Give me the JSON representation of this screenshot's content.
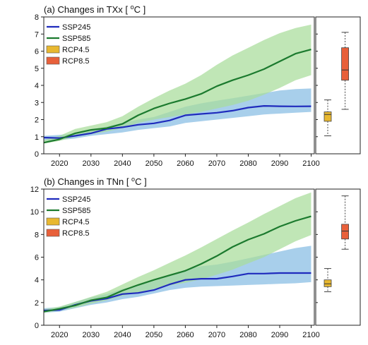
{
  "figure": {
    "panels": [
      {
        "title_prefix": "(a) Changes in TXx [ ",
        "title_unit_sup": "o",
        "title_unit": "C ]"
      },
      {
        "title_prefix": "(b) Changes in TNn [ ",
        "title_unit_sup": "o",
        "title_unit": "C ]"
      }
    ]
  },
  "chart_data": [
    {
      "type": "line",
      "title": "(a) Changes in TXx [ °C ]",
      "x": [
        2015,
        2020,
        2025,
        2030,
        2035,
        2040,
        2045,
        2050,
        2055,
        2060,
        2065,
        2070,
        2075,
        2080,
        2085,
        2090,
        2095,
        2100
      ],
      "xticks": [
        2020,
        2030,
        2040,
        2050,
        2060,
        2070,
        2080,
        2090,
        2100
      ],
      "xlim": [
        2015,
        2101
      ],
      "ylim": [
        0,
        8
      ],
      "yticks": [
        0,
        1,
        2,
        3,
        4,
        5,
        6,
        7,
        8
      ],
      "grid": false,
      "legend": "top-left",
      "series": [
        {
          "name": "SSP245",
          "color": "#1f2bbd",
          "band_color": "#9ecae9",
          "values": [
            0.95,
            0.92,
            1.05,
            1.2,
            1.45,
            1.55,
            1.7,
            1.78,
            1.95,
            2.25,
            2.33,
            2.4,
            2.52,
            2.7,
            2.8,
            2.78,
            2.77,
            2.78
          ],
          "lower": [
            0.75,
            0.8,
            0.9,
            1.05,
            1.15,
            1.25,
            1.4,
            1.5,
            1.6,
            1.8,
            1.9,
            2.0,
            2.1,
            2.2,
            2.3,
            2.35,
            2.4,
            2.45
          ],
          "upper": [
            1.05,
            1.1,
            1.2,
            1.38,
            1.6,
            1.8,
            2.0,
            2.15,
            2.45,
            2.75,
            2.95,
            3.1,
            3.25,
            3.4,
            3.55,
            3.7,
            3.78,
            3.82
          ]
        },
        {
          "name": "SSP585",
          "color": "#1b7a2e",
          "band_color": "#a8dc9a",
          "values": [
            0.65,
            0.85,
            1.2,
            1.4,
            1.5,
            1.75,
            2.25,
            2.65,
            2.95,
            3.2,
            3.5,
            3.95,
            4.3,
            4.6,
            4.95,
            5.4,
            5.85,
            6.1
          ],
          "lower": [
            0.6,
            0.75,
            1.0,
            1.15,
            1.3,
            1.5,
            1.8,
            2.0,
            2.15,
            2.3,
            2.45,
            2.65,
            2.85,
            3.1,
            3.45,
            3.85,
            4.3,
            4.6
          ],
          "upper": [
            0.8,
            1.05,
            1.45,
            1.65,
            1.85,
            2.2,
            2.75,
            3.25,
            3.7,
            4.1,
            4.6,
            5.2,
            5.75,
            6.2,
            6.65,
            7.05,
            7.35,
            7.55
          ]
        }
      ],
      "boxplots": [
        {
          "name": "RCP4.5",
          "color": "#e8b830",
          "min": 1.05,
          "q1": 1.9,
          "median": 2.3,
          "q3": 2.45,
          "max": 3.15
        },
        {
          "name": "RCP8.5",
          "color": "#e8603a",
          "min": 2.6,
          "q1": 4.3,
          "median": 4.9,
          "q3": 6.2,
          "max": 7.1
        }
      ]
    },
    {
      "type": "line",
      "title": "(b) Changes in TNn [ °C ]",
      "x": [
        2015,
        2020,
        2025,
        2030,
        2035,
        2040,
        2045,
        2050,
        2055,
        2060,
        2065,
        2070,
        2075,
        2080,
        2085,
        2090,
        2095,
        2100
      ],
      "xticks": [
        2020,
        2030,
        2040,
        2050,
        2060,
        2070,
        2080,
        2090,
        2100
      ],
      "xlim": [
        2015,
        2101
      ],
      "ylim": [
        0,
        12
      ],
      "yticks": [
        0,
        2,
        4,
        6,
        8,
        10,
        12
      ],
      "grid": false,
      "legend": "top-left",
      "series": [
        {
          "name": "SSP245",
          "color": "#1f2bbd",
          "band_color": "#9ecae9",
          "values": [
            1.3,
            1.35,
            1.8,
            2.15,
            2.35,
            2.75,
            2.85,
            3.1,
            3.6,
            4.0,
            4.1,
            4.1,
            4.3,
            4.55,
            4.55,
            4.6,
            4.6,
            4.6
          ],
          "lower": [
            1.1,
            1.2,
            1.5,
            1.8,
            2.0,
            2.3,
            2.5,
            2.8,
            3.1,
            3.3,
            3.4,
            3.45,
            3.5,
            3.55,
            3.6,
            3.65,
            3.7,
            3.8
          ],
          "upper": [
            1.5,
            1.6,
            2.05,
            2.45,
            2.75,
            3.2,
            3.5,
            3.9,
            4.4,
            4.9,
            5.2,
            5.35,
            5.6,
            5.9,
            6.2,
            6.5,
            6.8,
            7.0
          ]
        },
        {
          "name": "SSP585",
          "color": "#1b7a2e",
          "band_color": "#a8dc9a",
          "values": [
            1.2,
            1.45,
            1.75,
            2.2,
            2.45,
            3.05,
            3.55,
            4.0,
            4.4,
            4.8,
            5.4,
            6.1,
            6.9,
            7.55,
            8.05,
            8.7,
            9.2,
            9.6
          ],
          "lower": [
            1.1,
            1.3,
            1.55,
            1.9,
            2.2,
            2.6,
            2.9,
            3.2,
            3.5,
            3.75,
            4.05,
            4.45,
            4.9,
            5.45,
            6.0,
            6.7,
            7.4,
            7.95
          ],
          "upper": [
            1.4,
            1.65,
            2.05,
            2.5,
            2.95,
            3.6,
            4.25,
            4.85,
            5.5,
            6.15,
            6.85,
            7.6,
            8.35,
            9.05,
            9.8,
            10.5,
            11.2,
            11.7
          ]
        }
      ],
      "boxplots": [
        {
          "name": "RCP4.5",
          "color": "#e8b830",
          "min": 2.95,
          "q1": 3.4,
          "median": 3.65,
          "q3": 4.0,
          "max": 5.0
        },
        {
          "name": "RCP8.5",
          "color": "#e8603a",
          "min": 6.7,
          "q1": 7.6,
          "median": 8.3,
          "q3": 8.9,
          "max": 11.4
        }
      ]
    }
  ]
}
